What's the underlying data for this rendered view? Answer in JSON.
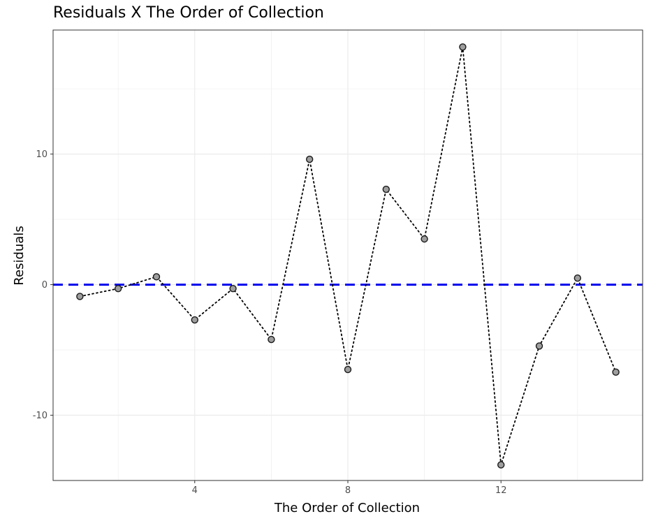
{
  "chart_data": {
    "type": "line",
    "title": "Residuals X The Order of Collection",
    "xlabel": "The Order of Collection",
    "ylabel": "Residuals",
    "xlim": [
      0.3,
      15.7
    ],
    "ylim": [
      -15,
      19.5
    ],
    "x_ticks": [
      4,
      8,
      12
    ],
    "x_minor": [
      2,
      6,
      10,
      14
    ],
    "y_ticks": [
      -10,
      0,
      10
    ],
    "y_minor": [
      -15,
      -5,
      5,
      15
    ],
    "tick_labels_x": [
      "4",
      "8",
      "12"
    ],
    "tick_labels_y": [
      "-10",
      "0",
      "10"
    ],
    "grid": true,
    "legend": "none",
    "reference_line": {
      "y": 0,
      "style": "dashed",
      "color": "#0000ee"
    },
    "series": [
      {
        "style": "dotted line with points",
        "color": "#000000",
        "point_fill": "#9e9e9e",
        "x": [
          1,
          2,
          3,
          4,
          5,
          6,
          7,
          8,
          9,
          10,
          11,
          12,
          13,
          14,
          15
        ],
        "y": [
          -0.9,
          -0.3,
          0.6,
          -2.7,
          -0.3,
          -4.2,
          9.6,
          -6.5,
          7.3,
          3.5,
          18.2,
          -13.8,
          -4.7,
          0.5,
          -6.7
        ]
      }
    ]
  },
  "colors": {
    "grid": "#ebebeb",
    "panel_border": "#333333",
    "tick_text": "#4d4d4d"
  }
}
